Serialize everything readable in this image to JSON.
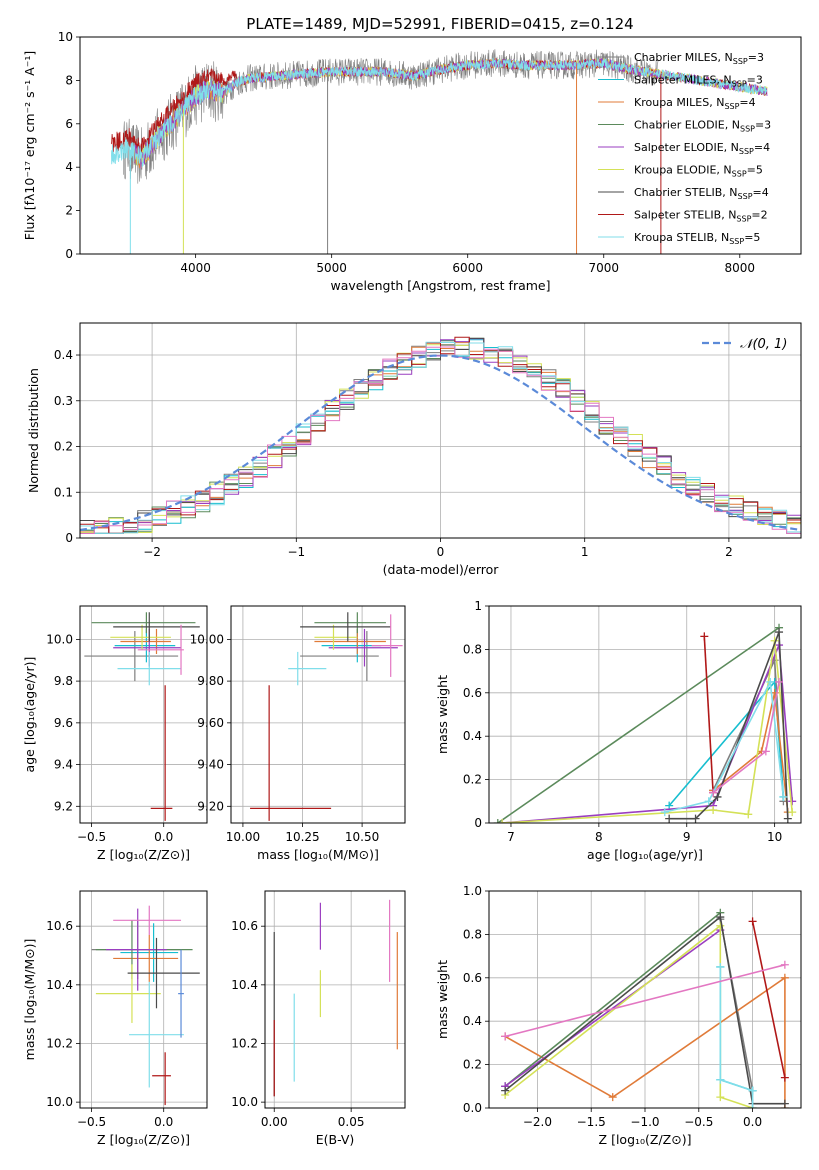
{
  "title": "PLATE=1489, MJD=52991, FIBERID=0415, z=0.124",
  "colors": {
    "Chabrier MILES": "#7f7f7f",
    "Salpeter MILES": "#17becf",
    "Kroupa MILES": "#e07b39",
    "Chabrier ELODIE": "#5b8a5b",
    "Salpeter ELODIE": "#9a3ec0",
    "Kroupa ELODIE": "#d4e157",
    "Chabrier STELIB": "#4a4a4a",
    "Salpeter STELIB": "#b01818",
    "Kroupa STELIB": "#80deea",
    "extra": "#e377c2",
    "normal": "#5b8ad8"
  },
  "chart_data": [
    {
      "id": "spectrum",
      "type": "line",
      "xlabel": "wavelength [Angstrom, rest frame]",
      "ylabel": "Flux [fλ10⁻¹⁷ erg cm⁻² s⁻¹ A⁻¹]",
      "xlim": [
        3150,
        8450
      ],
      "ylim": [
        0,
        10
      ],
      "xticks": [
        4000,
        5000,
        6000,
        7000,
        8000
      ],
      "yticks": [
        0,
        2,
        4,
        6,
        8,
        10
      ],
      "legend_position": "right",
      "legend": [
        {
          "label": "Chabrier MILES, N",
          "sub": "SSP",
          "n": "=3"
        },
        {
          "label": "Salpeter MILES, N",
          "sub": "SSP",
          "n": "=3"
        },
        {
          "label": "Kroupa MILES, N",
          "sub": "SSP",
          "n": "=4"
        },
        {
          "label": "Chabrier ELODIE, N",
          "sub": "SSP",
          "n": "=3"
        },
        {
          "label": "Salpeter ELODIE, N",
          "sub": "SSP",
          "n": "=4"
        },
        {
          "label": "Kroupa ELODIE, N",
          "sub": "SSP",
          "n": "=5"
        },
        {
          "label": "Chabrier STELIB, N",
          "sub": "SSP",
          "n": "=4"
        },
        {
          "label": "Salpeter STELIB, N",
          "sub": "SSP",
          "n": "=2"
        },
        {
          "label": "Kroupa STELIB, N",
          "sub": "SSP",
          "n": "=5"
        }
      ],
      "model_curve": {
        "x": [
          3400,
          3500,
          3600,
          3700,
          3800,
          3900,
          4000,
          4100,
          4200,
          4300,
          4400,
          4600,
          4800,
          5000,
          5200,
          5400,
          5600,
          5800,
          6000,
          6200,
          6400,
          6600,
          6800,
          7000,
          7200,
          7400,
          7600,
          7800,
          8000,
          8200
        ],
        "y": [
          4.6,
          4.9,
          4.4,
          5.2,
          5.9,
          6.6,
          7.3,
          7.6,
          7.4,
          7.9,
          8.1,
          8.2,
          8.3,
          8.4,
          8.4,
          8.4,
          8.2,
          8.5,
          8.7,
          8.8,
          8.7,
          8.7,
          8.7,
          8.8,
          8.5,
          8.3,
          8.1,
          7.9,
          7.7,
          7.5
        ]
      },
      "dropouts": [
        {
          "x": 3520,
          "color": "Kroupa STELIB"
        },
        {
          "x": 3910,
          "color": "Kroupa ELODIE"
        },
        {
          "x": 4970,
          "color": "Chabrier MILES"
        },
        {
          "x": 6800,
          "color": "Kroupa MILES"
        },
        {
          "x": 7420,
          "color": "Salpeter STELIB"
        }
      ]
    },
    {
      "id": "residuals",
      "type": "histogram",
      "xlabel": "(data-model)/error",
      "ylabel": "Normed distribution",
      "xlim": [
        -2.5,
        2.5
      ],
      "ylim": [
        0,
        0.47
      ],
      "xticks": [
        -2,
        -1,
        0,
        1,
        2
      ],
      "yticks": [
        0.0,
        0.1,
        0.2,
        0.3,
        0.4
      ],
      "legend_position": "top-right",
      "legend": [
        "𝒩(0, 1)"
      ],
      "bin_width": 0.1,
      "shape": "gaussian"
    },
    {
      "id": "age_vs_Z",
      "type": "errorbar",
      "xlabel": "Z [log₁₀(Z/Z⊙)]",
      "ylabel": "age  [log₁₀(age/yr)]",
      "xlim": [
        -0.58,
        0.3
      ],
      "ylim": [
        9.12,
        10.16
      ],
      "xticks": [
        -0.5,
        0.0
      ],
      "yticks": [
        9.2,
        9.4,
        9.6,
        9.8,
        10.0
      ],
      "points": [
        {
          "x": -0.2,
          "y": 9.92,
          "xe": [
            0.35,
            0.3
          ],
          "ye": [
            0.12,
            0.12
          ],
          "c": "Chabrier MILES"
        },
        {
          "x": -0.12,
          "y": 9.97,
          "xe": [
            0.22,
            0.2
          ],
          "ye": [
            0.08,
            0.08
          ],
          "c": "Salpeter MILES"
        },
        {
          "x": -0.05,
          "y": 9.99,
          "xe": [
            0.25,
            0.1
          ],
          "ye": [
            0.06,
            0.06
          ],
          "c": "Kroupa MILES"
        },
        {
          "x": -0.12,
          "y": 10.08,
          "xe": [
            0.38,
            0.34
          ],
          "ye": [
            0.05,
            0.05
          ],
          "c": "Chabrier ELODIE"
        },
        {
          "x": -0.1,
          "y": 9.96,
          "xe": [
            0.25,
            0.22
          ],
          "ye": [
            0.09,
            0.09
          ],
          "c": "Salpeter ELODIE"
        },
        {
          "x": -0.15,
          "y": 10.01,
          "xe": [
            0.22,
            0.2
          ],
          "ye": [
            0.06,
            0.06
          ],
          "c": "Kroupa ELODIE"
        },
        {
          "x": -0.1,
          "y": 10.06,
          "xe": [
            0.25,
            0.35
          ],
          "ye": [
            0.07,
            0.07
          ],
          "c": "Chabrier STELIB"
        },
        {
          "x": 0.01,
          "y": 9.19,
          "xe": [
            0.1,
            0.05
          ],
          "ye": [
            0.06,
            0.59
          ],
          "c": "Salpeter STELIB"
        },
        {
          "x": -0.1,
          "y": 9.86,
          "xe": [
            0.22,
            0.22
          ],
          "ye": [
            0.08,
            0.08
          ],
          "c": "Kroupa STELIB"
        },
        {
          "x": 0.12,
          "y": 9.95,
          "xe": [
            0.3,
            0.02
          ],
          "ye": [
            0.12,
            0.12
          ],
          "c": "extra"
        }
      ]
    },
    {
      "id": "age_vs_mass",
      "type": "errorbar",
      "xlabel": "mass [log₁₀(M/M⊙)]",
      "ylabel": "",
      "xlim": [
        9.95,
        10.68
      ],
      "ylim": [
        9.12,
        10.16
      ],
      "xticks": [
        10.0,
        10.25,
        10.5
      ],
      "yticks": [
        9.2,
        9.4,
        9.6,
        9.8,
        10.0
      ],
      "points": [
        {
          "x": 10.52,
          "y": 9.92,
          "xe": [
            0.28,
            0.05
          ],
          "ye": [
            0.12,
            0.12
          ],
          "c": "Chabrier MILES"
        },
        {
          "x": 10.48,
          "y": 9.97,
          "xe": [
            0.15,
            0.1
          ],
          "ye": [
            0.08,
            0.08
          ],
          "c": "Salpeter MILES"
        },
        {
          "x": 10.48,
          "y": 9.99,
          "xe": [
            0.18,
            0.12
          ],
          "ye": [
            0.06,
            0.06
          ],
          "c": "Kroupa MILES"
        },
        {
          "x": 10.48,
          "y": 10.08,
          "xe": [
            0.18,
            0.12
          ],
          "ye": [
            0.05,
            0.05
          ],
          "c": "Chabrier ELODIE"
        },
        {
          "x": 10.51,
          "y": 9.96,
          "xe": [
            0.15,
            0.14
          ],
          "ye": [
            0.09,
            0.09
          ],
          "c": "Salpeter ELODIE"
        },
        {
          "x": 10.38,
          "y": 10.01,
          "xe": [
            0.08,
            0.1
          ],
          "ye": [
            0.06,
            0.06
          ],
          "c": "Kroupa ELODIE"
        },
        {
          "x": 10.44,
          "y": 10.06,
          "xe": [
            0.2,
            0.18
          ],
          "ye": [
            0.07,
            0.07
          ],
          "c": "Chabrier STELIB"
        },
        {
          "x": 10.11,
          "y": 9.19,
          "xe": [
            0.08,
            0.26
          ],
          "ye": [
            0.06,
            0.59
          ],
          "c": "Salpeter STELIB"
        },
        {
          "x": 10.23,
          "y": 9.86,
          "xe": [
            0.04,
            0.12
          ],
          "ye": [
            0.08,
            0.08
          ],
          "c": "Kroupa STELIB"
        },
        {
          "x": 10.62,
          "y": 9.97,
          "xe": [
            0.08,
            0.05
          ],
          "ye": [
            0.15,
            0.15
          ],
          "c": "extra"
        }
      ]
    },
    {
      "id": "weight_vs_age",
      "type": "line",
      "xlabel": "age  [log₁₀(age/yr)]",
      "ylabel": "mass weight",
      "xlim": [
        6.75,
        10.3
      ],
      "ylim": [
        0,
        1.0
      ],
      "xticks": [
        7,
        8,
        9,
        10
      ],
      "yticks": [
        0.0,
        0.2,
        0.4,
        0.6,
        0.8,
        1.0
      ],
      "series": [
        {
          "c": "Chabrier MILES",
          "x": [
            9.3,
            10.0,
            10.1
          ],
          "y": [
            0.15,
            0.75,
            0.1
          ]
        },
        {
          "c": "Salpeter MILES",
          "x": [
            8.8,
            10.0,
            10.1
          ],
          "y": [
            0.08,
            0.65,
            0.12
          ]
        },
        {
          "c": "Kroupa MILES",
          "x": [
            9.3,
            9.85,
            10.0,
            10.15
          ],
          "y": [
            0.15,
            0.33,
            0.6,
            0.05
          ]
        },
        {
          "c": "Chabrier ELODIE",
          "x": [
            6.85,
            10.05
          ],
          "y": [
            0.0,
            0.9
          ]
        },
        {
          "c": "Salpeter ELODIE",
          "x": [
            6.9,
            9.3,
            10.05,
            10.2
          ],
          "y": [
            0.0,
            0.08,
            0.82,
            0.1
          ]
        },
        {
          "c": "Kroupa ELODIE",
          "x": [
            6.9,
            9.3,
            9.7,
            10.0,
            10.2
          ],
          "y": [
            0.0,
            0.06,
            0.04,
            0.84,
            0.05
          ]
        },
        {
          "c": "Chabrier STELIB",
          "x": [
            8.8,
            9.1,
            9.35,
            10.05,
            10.15
          ],
          "y": [
            0.02,
            0.02,
            0.12,
            0.88,
            0.02
          ]
        },
        {
          "c": "Salpeter STELIB",
          "x": [
            9.2,
            9.3
          ],
          "y": [
            0.86,
            0.14
          ]
        },
        {
          "c": "Kroupa STELIB",
          "x": [
            8.75,
            9.25,
            9.95,
            10.1
          ],
          "y": [
            0.05,
            0.1,
            0.65,
            0.12
          ]
        },
        {
          "c": "extra",
          "x": [
            9.3,
            9.9,
            10.05
          ],
          "y": [
            0.14,
            0.33,
            0.65
          ]
        }
      ]
    },
    {
      "id": "mass_vs_Z",
      "type": "errorbar",
      "xlabel": "Z [log₁₀(Z/Z⊙)]",
      "ylabel": "mass [log₁₀(M/M⊙)]",
      "xlim": [
        -0.58,
        0.3
      ],
      "ylim": [
        9.98,
        10.72
      ],
      "xticks": [
        -0.5,
        0.0
      ],
      "yticks": [
        10.0,
        10.2,
        10.4,
        10.6
      ],
      "points": [
        {
          "x": -0.18,
          "y": 10.52,
          "xe": [
            0.32,
            0.3
          ],
          "ye": [
            0.1,
            0.1
          ],
          "c": "Chabrier MILES"
        },
        {
          "x": -0.07,
          "y": 10.51,
          "xe": [
            0.23,
            0.17
          ],
          "ye": [
            0.1,
            0.1
          ],
          "c": "Salpeter MILES"
        },
        {
          "x": -0.1,
          "y": 10.49,
          "xe": [
            0.25,
            0.2
          ],
          "ye": [
            0.08,
            0.08
          ],
          "c": "Kroupa MILES"
        },
        {
          "x": -0.22,
          "y": 10.52,
          "xe": [
            0.25,
            0.42
          ],
          "ye": [
            0.1,
            0.1
          ],
          "c": "Chabrier ELODIE"
        },
        {
          "x": -0.18,
          "y": 10.52,
          "xe": [
            0.22,
            0.2
          ],
          "ye": [
            0.14,
            0.14
          ],
          "c": "Salpeter ELODIE"
        },
        {
          "x": -0.22,
          "y": 10.37,
          "xe": [
            0.25,
            0.2
          ],
          "ye": [
            0.1,
            0.1
          ],
          "c": "Kroupa ELODIE"
        },
        {
          "x": -0.05,
          "y": 10.44,
          "xe": [
            0.2,
            0.3
          ],
          "ye": [
            0.12,
            0.12
          ],
          "c": "Chabrier STELIB"
        },
        {
          "x": 0.01,
          "y": 10.09,
          "xe": [
            0.09,
            0.04
          ],
          "ye": [
            0.1,
            0.08
          ],
          "c": "Salpeter STELIB"
        },
        {
          "x": -0.1,
          "y": 10.23,
          "xe": [
            0.14,
            0.24
          ],
          "ye": [
            0.18,
            0.18
          ],
          "c": "Kroupa STELIB"
        },
        {
          "x": -0.1,
          "y": 10.62,
          "xe": [
            0.25,
            0.22
          ],
          "ye": [
            0.05,
            0.05
          ],
          "c": "extra"
        },
        {
          "x": 0.12,
          "y": 10.37,
          "xe": [
            0.02,
            0.02
          ],
          "ye": [
            0.15,
            0.15
          ],
          "c": "normal"
        }
      ]
    },
    {
      "id": "mass_vs_ebv",
      "type": "errorbar",
      "xlabel": "E(B-V)",
      "ylabel": "",
      "xlim": [
        -0.006,
        0.085
      ],
      "ylim": [
        9.98,
        10.72
      ],
      "xticks": [
        0.0,
        0.05
      ],
      "yticks": [
        10.0,
        10.2,
        10.4,
        10.6
      ],
      "points": [
        {
          "x": 0.0,
          "y": 10.3,
          "ye": [
            0.28,
            0.28
          ],
          "c": "Chabrier STELIB"
        },
        {
          "x": 0.0,
          "y": 10.15,
          "ye": [
            0.13,
            0.13
          ],
          "c": "Salpeter STELIB"
        },
        {
          "x": 0.013,
          "y": 10.22,
          "ye": [
            0.15,
            0.15
          ],
          "c": "Kroupa STELIB"
        },
        {
          "x": 0.03,
          "y": 10.6,
          "ye": [
            0.08,
            0.08
          ],
          "c": "Salpeter ELODIE"
        },
        {
          "x": 0.03,
          "y": 10.37,
          "ye": [
            0.08,
            0.08
          ],
          "c": "Kroupa ELODIE"
        },
        {
          "x": 0.075,
          "y": 10.55,
          "ye": [
            0.14,
            0.14
          ],
          "c": "extra"
        },
        {
          "x": 0.08,
          "y": 10.38,
          "ye": [
            0.2,
            0.2
          ],
          "c": "Kroupa MILES"
        }
      ]
    },
    {
      "id": "weight_vs_Z",
      "type": "line",
      "xlabel": "Z [log₁₀(Z/Z⊙)]",
      "ylabel": "mass weight",
      "xlim": [
        -2.45,
        0.45
      ],
      "ylim": [
        0,
        1.0
      ],
      "xticks": [
        -2.0,
        -1.5,
        -1.0,
        -0.5,
        0.0
      ],
      "yticks": [
        0.0,
        0.2,
        0.4,
        0.6,
        0.8,
        1.0
      ],
      "series": [
        {
          "c": "Chabrier MILES",
          "x": [
            -0.3,
            0.0
          ],
          "y": [
            0.87,
            0.08
          ]
        },
        {
          "c": "Salpeter MILES",
          "x": [
            -0.3,
            -0.3,
            0.0
          ],
          "y": [
            0.65,
            0.13,
            0.08
          ]
        },
        {
          "c": "Kroupa MILES",
          "x": [
            -2.3,
            -1.3,
            0.3,
            0.3
          ],
          "y": [
            0.33,
            0.05,
            0.6,
            0.0
          ]
        },
        {
          "c": "Chabrier ELODIE",
          "x": [
            -2.3,
            -0.3
          ],
          "y": [
            0.1,
            0.9
          ]
        },
        {
          "c": "Salpeter ELODIE",
          "x": [
            -2.3,
            -0.3
          ],
          "y": [
            0.1,
            0.82
          ]
        },
        {
          "c": "Kroupa ELODIE",
          "x": [
            -2.3,
            -0.3,
            -0.3,
            0.0
          ],
          "y": [
            0.06,
            0.84,
            0.05,
            0.0
          ]
        },
        {
          "c": "Chabrier STELIB",
          "x": [
            -2.3,
            -0.3,
            0.0,
            0.3
          ],
          "y": [
            0.08,
            0.88,
            0.02,
            0.02
          ]
        },
        {
          "c": "Salpeter STELIB",
          "x": [
            0.0,
            0.3
          ],
          "y": [
            0.86,
            0.14
          ]
        },
        {
          "c": "Kroupa STELIB",
          "x": [
            -0.3,
            -0.3,
            0.0,
            0.0
          ],
          "y": [
            0.65,
            0.13,
            0.08,
            0.0
          ]
        },
        {
          "c": "extra",
          "x": [
            -2.3,
            0.3
          ],
          "y": [
            0.33,
            0.66
          ]
        }
      ]
    }
  ]
}
